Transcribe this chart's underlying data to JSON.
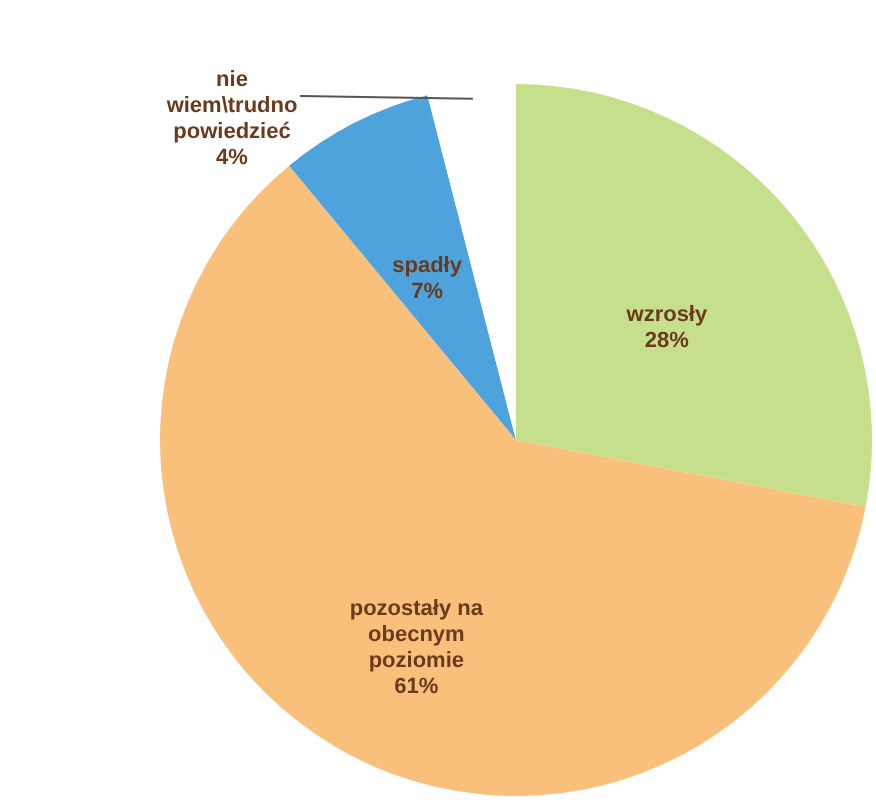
{
  "chart_data": {
    "type": "pie",
    "categories": [
      "wzrosły",
      "pozostały na obecnym poziomie",
      "spadły",
      "nie wiem\\trudno powiedzieć"
    ],
    "values": [
      28,
      61,
      7,
      4
    ],
    "colors": [
      "#c6df8c",
      "#f9c07c",
      "#4fa3dc",
      "#ffffff"
    ],
    "value_labels": [
      "28%",
      "61%",
      "7%",
      "4%"
    ]
  }
}
